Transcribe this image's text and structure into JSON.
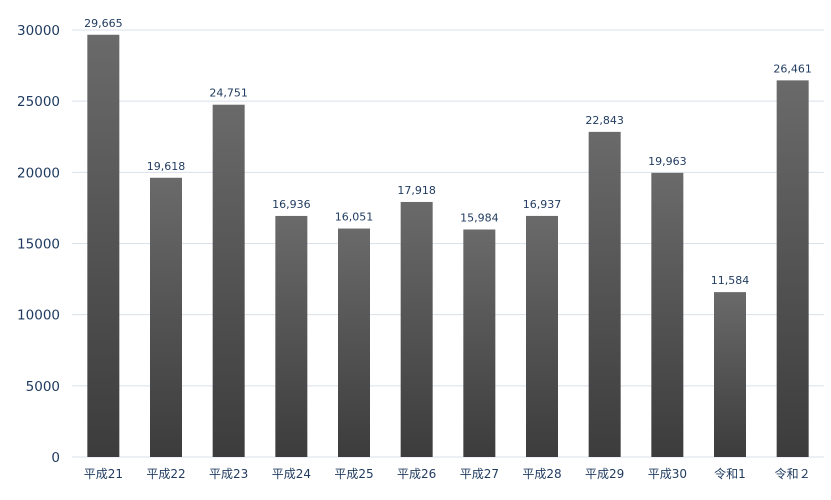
{
  "chart_data": {
    "type": "bar",
    "categories": [
      "平成21",
      "平成22",
      "平成23",
      "平成24",
      "平成25",
      "平成26",
      "平成27",
      "平成28",
      "平成29",
      "平成30",
      "令和1",
      "令和２"
    ],
    "values": [
      29665,
      19618,
      24751,
      16936,
      16051,
      17918,
      15984,
      16937,
      22843,
      19963,
      11584,
      26461
    ],
    "data_labels": [
      "29,665",
      "19,618",
      "24,751",
      "16,936",
      "16,051",
      "17,918",
      "15,984",
      "16,937",
      "22,843",
      "19,963",
      "11,584",
      "26,461"
    ],
    "ylim": [
      0,
      30000
    ],
    "yticks": [
      0,
      5000,
      10000,
      15000,
      20000,
      25000,
      30000
    ],
    "grid": true,
    "legend": "none",
    "colors": {
      "bar_top": "#6a6a6a",
      "bar_bottom": "#3c3c3c",
      "grid": "#d9e1ea",
      "text": "#1f3a5f"
    }
  }
}
